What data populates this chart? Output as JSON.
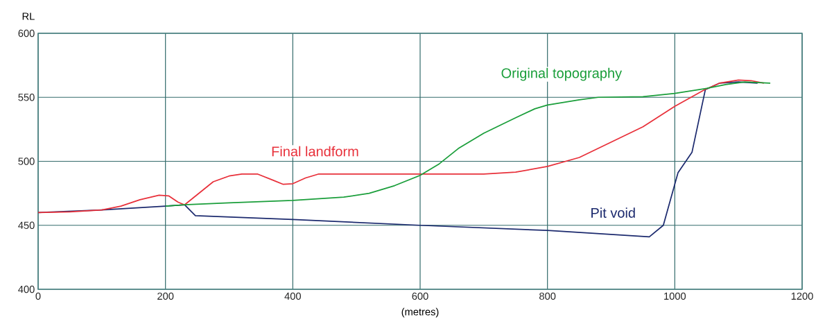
{
  "chart_data": {
    "type": "line",
    "xlabel": "(metres)",
    "ylabel": "RL",
    "xlim": [
      0,
      1200
    ],
    "xticks": [
      0,
      200,
      400,
      600,
      800,
      1000,
      1200
    ],
    "ylim": [
      400,
      600
    ],
    "yticks": [
      400,
      450,
      500,
      550,
      600
    ],
    "grid": true,
    "series": [
      {
        "name": "Original topography",
        "color": "#1a9e3a",
        "x": [
          200,
          230,
          300,
          400,
          480,
          520,
          560,
          600,
          630,
          660,
          700,
          750,
          780,
          800,
          850,
          880,
          950,
          1000,
          1050,
          1080,
          1110,
          1150
        ],
        "values": [
          465,
          466,
          467.5,
          469.5,
          472,
          475,
          481,
          489,
          498,
          510,
          522,
          534,
          541,
          544,
          548,
          550,
          550.5,
          553,
          557,
          560,
          562,
          561
        ]
      },
      {
        "name": "Final landform",
        "color": "#e8303a",
        "x": [
          0,
          50,
          100,
          130,
          160,
          190,
          205,
          220,
          230,
          250,
          275,
          300,
          320,
          345,
          370,
          385,
          400,
          420,
          440,
          500,
          600,
          700,
          750,
          800,
          850,
          900,
          950,
          1000,
          1047,
          1070,
          1100,
          1120,
          1140
        ],
        "values": [
          460,
          460.5,
          462,
          465,
          470,
          473.5,
          473,
          468,
          466,
          474,
          484,
          488.5,
          490,
          490,
          485,
          482,
          482.5,
          487,
          490,
          490,
          490,
          490,
          491.5,
          496,
          503,
          515,
          527,
          543,
          556,
          561,
          563.5,
          563,
          561
        ]
      },
      {
        "name": "Pit void",
        "color": "#1c2a6e",
        "x": [
          0,
          100,
          200,
          230,
          247,
          400,
          600,
          800,
          960,
          982,
          1005,
          1027,
          1048,
          1070,
          1100,
          1130
        ],
        "values": [
          460,
          462,
          465,
          466,
          457.5,
          454.5,
          450,
          446,
          441,
          450,
          491,
          507,
          556,
          561,
          562,
          561
        ]
      }
    ]
  }
}
